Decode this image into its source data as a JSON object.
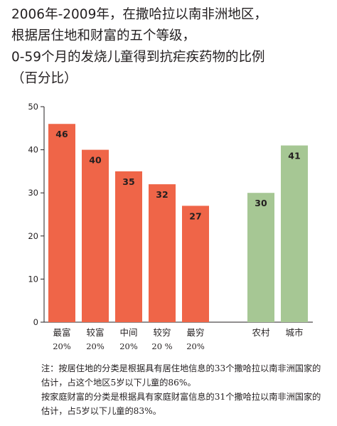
{
  "title_lines": [
    "2006年-2009年，在撒哈拉以南非洲地区，",
    "根据居住地和财富的五个等级，",
    "0-59个月的发烧儿童得到抗疟疾药物的比例",
    "（百分比）"
  ],
  "colors": {
    "wealth": "#ef6548",
    "residence": "#a6c794",
    "axis": "#231f20"
  },
  "chart_data": {
    "type": "bar",
    "title": "2006年-2009年，在撒哈拉以南非洲地区，根据居住地和财富的五个等级，0-59个月的发烧儿童得到抗疟疾药物的比例（百分比）",
    "ylim": [
      0,
      50
    ],
    "yticks": [
      0,
      10,
      20,
      30,
      40,
      50
    ],
    "grid": false,
    "groups": [
      {
        "name": "wealth",
        "categories": [
          "最富",
          "较富",
          "中间",
          "较穷",
          "最穷"
        ],
        "sublabels": [
          "20%",
          "20%",
          "20%",
          "20 %",
          "20%"
        ],
        "values": [
          46,
          40,
          35,
          32,
          27
        ]
      },
      {
        "name": "residence",
        "categories": [
          "农村",
          "城市"
        ],
        "values": [
          30,
          41
        ]
      }
    ]
  },
  "notes": [
    "注：按居住地的分类是根据具有居住地信息的33个撒哈拉以南非洲国家的估计，占这个地区5岁以下儿童的86%。",
    "按家庭财富的分类是根据具有家庭财富信息的31个撒哈拉以南非洲国家的估计，占5岁以下儿童的83%。"
  ]
}
